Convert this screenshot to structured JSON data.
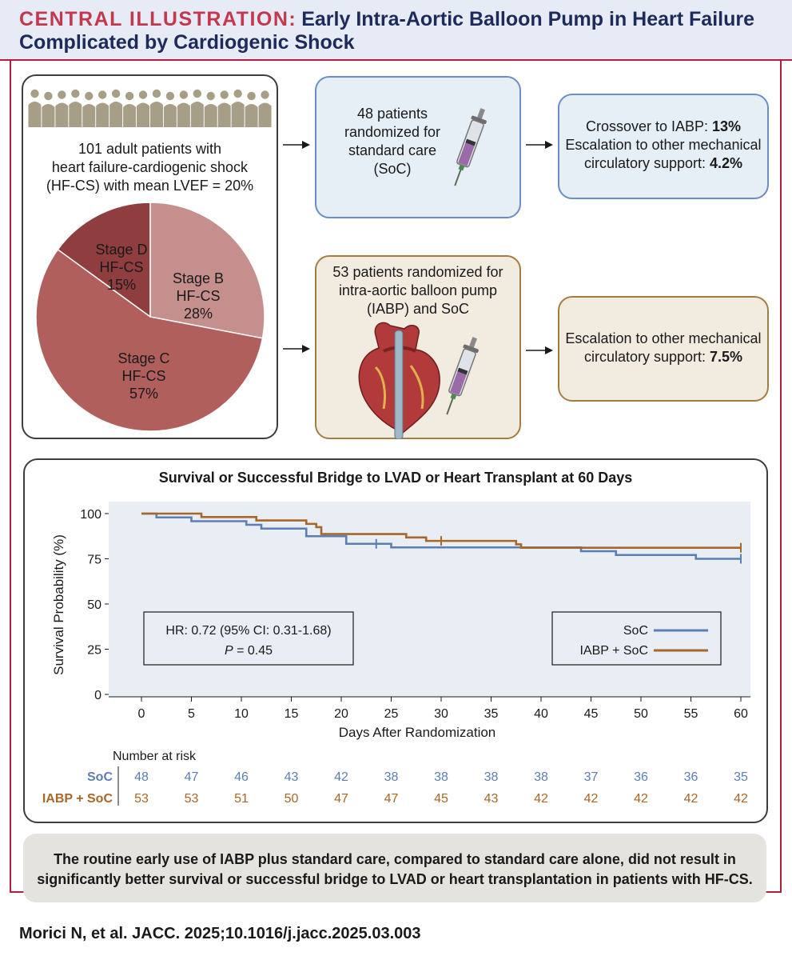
{
  "header": {
    "tag": "CENTRAL ILLUSTRATION:",
    "title_line1": "Early Intra-Aortic Balloon Pump in Heart Failure",
    "title_line2": "Complicated by Cardiogenic Shock"
  },
  "population": {
    "line1": "101 adult patients with",
    "line2": "heart failure-cardiogenic shock",
    "line3": "(HF-CS) with mean LVEF = 20%",
    "pie": [
      {
        "name": "Stage D",
        "sub": "HF-CS",
        "pct_label": "15%",
        "value": 15,
        "color": "#8f3d3e"
      },
      {
        "name": "Stage B",
        "sub": "HF-CS",
        "pct_label": "28%",
        "value": 28,
        "color": "#c48f8d"
      },
      {
        "name": "Stage C",
        "sub": "HF-CS",
        "pct_label": "57%",
        "value": 57,
        "color": "#b05f5d"
      }
    ]
  },
  "soc_arm": {
    "line1": "48 patients",
    "line2": "randomized for",
    "line3": "standard care",
    "line4": "(SoC)"
  },
  "iabp_arm": {
    "line1": "53 patients randomized for",
    "line2": "intra-aortic balloon pump",
    "line3": "(IABP) and SoC"
  },
  "soc_outcome": {
    "l1_prefix": "Crossover to IABP: ",
    "l1_value": "13%",
    "l2": "Escalation to other mechanical",
    "l3_prefix": "circulatory support: ",
    "l3_value": "4.2%"
  },
  "iabp_outcome": {
    "l1": "Escalation to other mechanical",
    "l2_prefix": "circulatory support: ",
    "l2_value": "7.5%"
  },
  "chart_data": {
    "type": "line",
    "title": "Survival or Successful Bridge to LVAD or Heart Transplant at 60 Days",
    "xlabel": "Days After Randomization",
    "ylabel": "Survival Probability (%)",
    "xlim": [
      0,
      60
    ],
    "ylim": [
      0,
      100
    ],
    "x_ticks": [
      0,
      5,
      10,
      15,
      20,
      25,
      30,
      35,
      40,
      45,
      50,
      55,
      60
    ],
    "y_ticks": [
      0,
      25,
      50,
      75,
      100
    ],
    "series": [
      {
        "name": "SoC",
        "color": "#5b7fb5",
        "steps": [
          [
            0,
            100
          ],
          [
            1.5,
            97.9
          ],
          [
            5,
            95.8
          ],
          [
            10.5,
            93.8
          ],
          [
            12,
            91.7
          ],
          [
            16.5,
            87.5
          ],
          [
            20.5,
            83.3
          ],
          [
            25,
            81.3
          ],
          [
            44,
            79.2
          ],
          [
            47.5,
            77.1
          ],
          [
            55.5,
            75
          ],
          [
            60,
            75
          ]
        ],
        "censor": [
          23.5,
          60
        ]
      },
      {
        "name": "IABP + SoC",
        "color": "#a8672a",
        "steps": [
          [
            0,
            100
          ],
          [
            1.5,
            100
          ],
          [
            6,
            98.1
          ],
          [
            11.5,
            96.2
          ],
          [
            16.5,
            94.3
          ],
          [
            17.5,
            92.5
          ],
          [
            18,
            88.7
          ],
          [
            26.5,
            86.8
          ],
          [
            28.5,
            84.9
          ],
          [
            37.5,
            83
          ],
          [
            38,
            81.1
          ],
          [
            60,
            81.1
          ]
        ],
        "censor": [
          30,
          60
        ]
      }
    ],
    "hr_text": "HR: 0.72 (95% CI: 0.31-1.68)",
    "p_label": "P",
    "p_text": " = 0.45",
    "legend": [
      "SoC",
      "IABP + SoC"
    ],
    "risk_table": {
      "title": "Number at risk",
      "rows": [
        {
          "label": "SoC",
          "values": [
            48,
            47,
            46,
            43,
            42,
            38,
            38,
            38,
            38,
            37,
            36,
            36,
            35
          ]
        },
        {
          "label": "IABP + SoC",
          "values": [
            53,
            53,
            51,
            50,
            47,
            47,
            45,
            43,
            42,
            42,
            42,
            42,
            42
          ]
        }
      ]
    }
  },
  "conclusion": {
    "line1": "The routine early use of IABP plus standard care, compared to standard care alone, did not result in",
    "line2": "significantly better survival or successful bridge to LVAD or heart transplantation in patients with HF-CS."
  },
  "citation": "Morici N, et al. JACC. 2025;10.1016/j.jacc.2025.03.003"
}
